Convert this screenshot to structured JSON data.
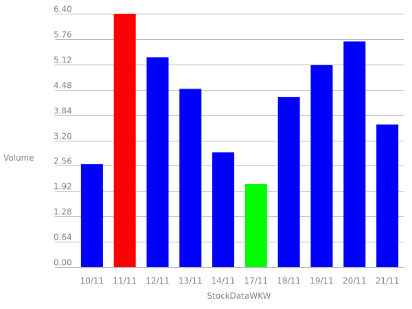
{
  "chart_data": {
    "type": "bar",
    "xlabel": "StockDataWKW",
    "ylabel": "Volume",
    "ylim": [
      0,
      6.4
    ],
    "y_ticks": [
      "0.00",
      "0.64",
      "1.28",
      "1.92",
      "2.56",
      "3.20",
      "3.84",
      "4.48",
      "5.12",
      "5.76",
      "6.40"
    ],
    "grid": true,
    "legend": "none",
    "categories": [
      "10/11",
      "11/11",
      "12/11",
      "13/11",
      "14/11",
      "17/11",
      "18/11",
      "19/11",
      "20/11",
      "21/11"
    ],
    "values": [
      2.6,
      6.4,
      5.3,
      4.5,
      2.9,
      2.1,
      4.3,
      5.1,
      5.7,
      3.6
    ],
    "bar_colors": [
      "#0000ff",
      "#ff0000",
      "#0000ff",
      "#0000ff",
      "#0000ff",
      "#00ff00",
      "#0000ff",
      "#0000ff",
      "#0000ff",
      "#0000ff"
    ],
    "colors": {
      "default_bar": "#0000ff",
      "max_bar": "#ff0000",
      "min_bar": "#00ff00",
      "gridline": "#b8b8b8",
      "text": "#808080"
    }
  }
}
